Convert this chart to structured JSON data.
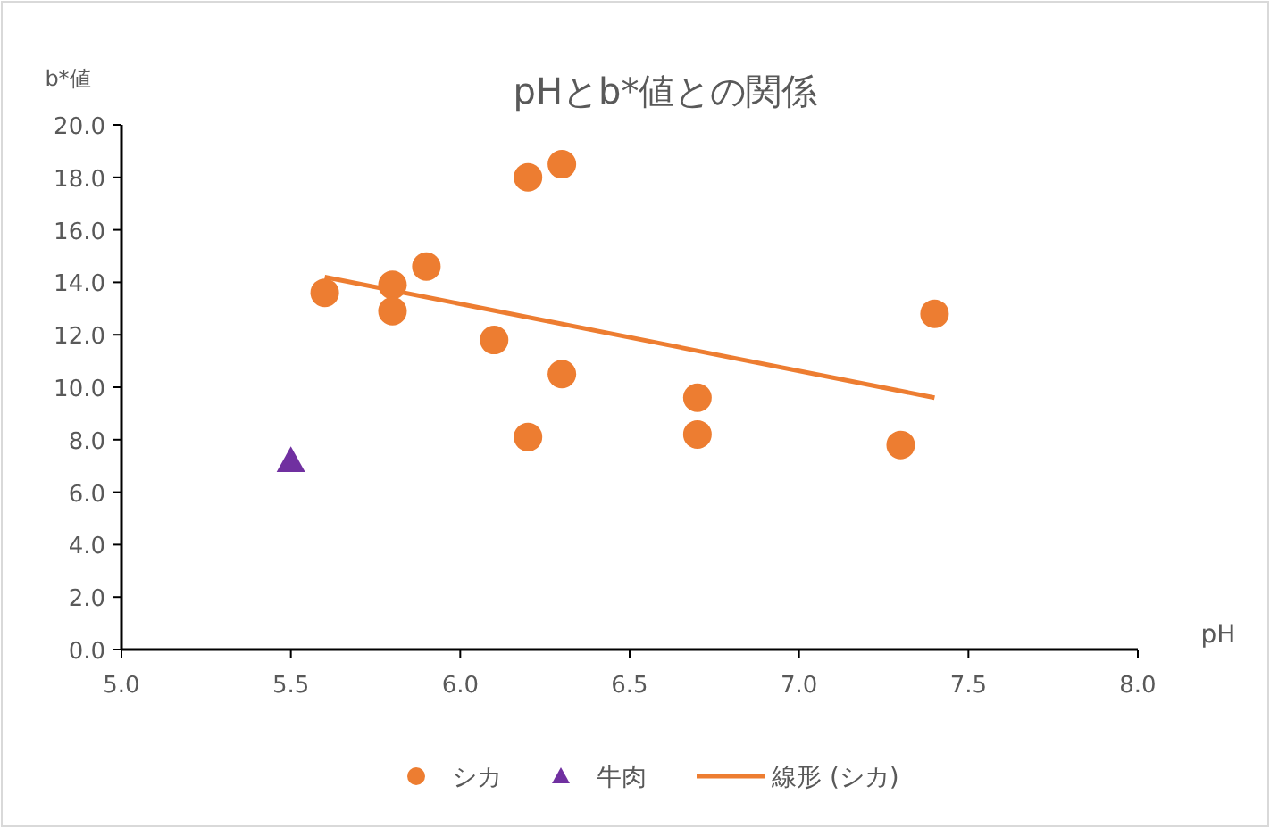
{
  "chart_data": {
    "type": "scatter",
    "title": "pHとb*値との関係",
    "xlabel": "pH",
    "ylabel": "b*値",
    "xlim": [
      5.0,
      8.0
    ],
    "ylim": [
      0,
      20
    ],
    "xticks": [
      {
        "value": 5,
        "label": "5.0"
      },
      {
        "value": 5.5,
        "label": "5.5"
      },
      {
        "value": 6,
        "label": "6.0"
      },
      {
        "value": 6.5,
        "label": "6.5"
      },
      {
        "value": 7,
        "label": "7.0"
      },
      {
        "value": 7.5,
        "label": "7.5"
      },
      {
        "value": 8,
        "label": "8.0"
      }
    ],
    "yticks": [
      {
        "value": 0,
        "label": "0.0"
      },
      {
        "value": 2,
        "label": "2.0"
      },
      {
        "value": 4,
        "label": "4.0"
      },
      {
        "value": 6,
        "label": "6.0"
      },
      {
        "value": 8,
        "label": "8.0"
      },
      {
        "value": 10,
        "label": "10.0"
      },
      {
        "value": 12,
        "label": "12.0"
      },
      {
        "value": 14,
        "label": "14.0"
      },
      {
        "value": 16,
        "label": "16.0"
      },
      {
        "value": 18,
        "label": "18.0"
      },
      {
        "value": 20,
        "label": "20.0"
      }
    ],
    "legend": "bottom",
    "series": [
      {
        "name": "シカ",
        "type": "scatter",
        "marker": "circle",
        "color": "#ed7d31",
        "x": [
          5.6,
          5.8,
          5.8,
          5.9,
          6.1,
          6.2,
          6.3,
          6.2,
          6.3,
          6.7,
          6.7,
          7.3,
          7.4
        ],
        "values": [
          13.6,
          13.9,
          12.9,
          14.6,
          11.8,
          18.0,
          18.5,
          8.1,
          10.5,
          9.6,
          8.2,
          7.8,
          12.8
        ]
      },
      {
        "name": "牛肉",
        "type": "scatter",
        "marker": "triangle",
        "color": "#7030a0",
        "x": [
          5.5
        ],
        "values": [
          7.2
        ]
      },
      {
        "name": "線形 (シカ)",
        "type": "line",
        "marker": "none",
        "color": "#ed7d31",
        "x": [
          5.6,
          7.4
        ],
        "values": [
          14.2,
          9.6
        ]
      }
    ]
  }
}
